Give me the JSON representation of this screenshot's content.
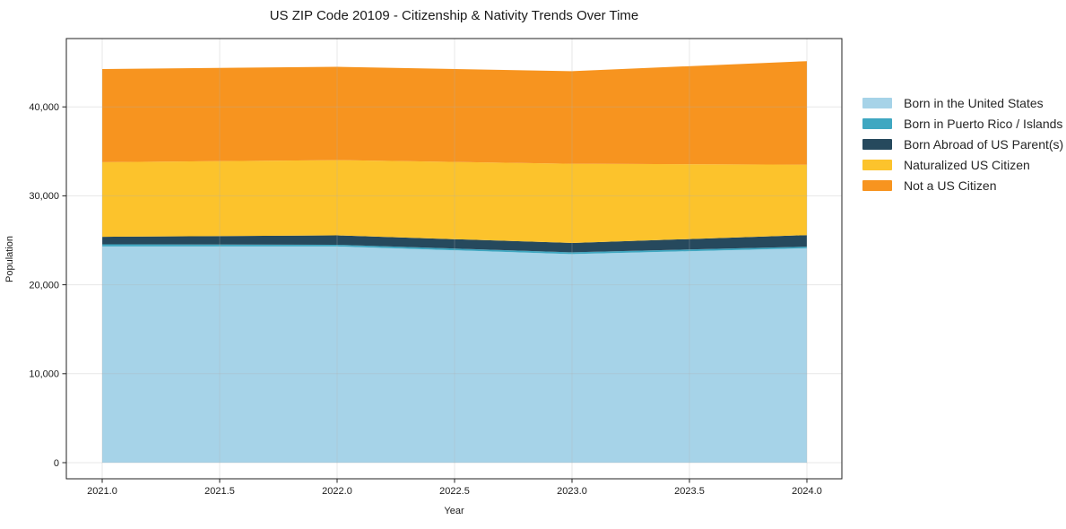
{
  "chart_data": {
    "type": "area",
    "stacked": true,
    "title": "US ZIP Code 20109 - Citizenship & Nativity Trends Over Time",
    "xlabel": "Year",
    "ylabel": "Population",
    "x": [
      2021,
      2022,
      2023,
      2024
    ],
    "series": [
      {
        "name": "Born in the United States",
        "color": "#A6D3E8",
        "values": [
          24300,
          24300,
          23450,
          24100
        ]
      },
      {
        "name": "Born in Puerto Rico / Islands",
        "color": "#3FA7C1",
        "values": [
          250,
          200,
          200,
          180
        ]
      },
      {
        "name": "Born Abroad of US Parent(s)",
        "color": "#26495D",
        "values": [
          840,
          1050,
          1050,
          1300
        ]
      },
      {
        "name": "Naturalized US Citizen",
        "color": "#FCC32C",
        "values": [
          8390,
          8460,
          8910,
          7920
        ]
      },
      {
        "name": "Not a US Citizen",
        "color": "#F7941F",
        "values": [
          10470,
          10500,
          10400,
          11640
        ]
      }
    ],
    "totals": [
      44250,
      44510,
      44010,
      45140
    ],
    "x_ticks": [
      2021.0,
      2021.5,
      2022.0,
      2022.5,
      2023.0,
      2023.5,
      2024.0
    ],
    "x_tick_labels": [
      "2021.0",
      "2021.5",
      "2022.0",
      "2022.5",
      "2023.0",
      "2023.5",
      "2024.0"
    ],
    "y_ticks": [
      0,
      10000,
      20000,
      30000,
      40000
    ],
    "y_tick_labels": [
      "0",
      "10,000",
      "20,000",
      "30,000",
      "40,000"
    ],
    "xlim": [
      2020.85,
      2024.15
    ],
    "ylim": [
      -1815,
      47680
    ],
    "grid": true,
    "legend_position": "right-outside",
    "colors": {
      "background": "#ffffff",
      "grid": "#b0b0b0",
      "spine": "#222222",
      "text": "#1a1a1a"
    }
  }
}
